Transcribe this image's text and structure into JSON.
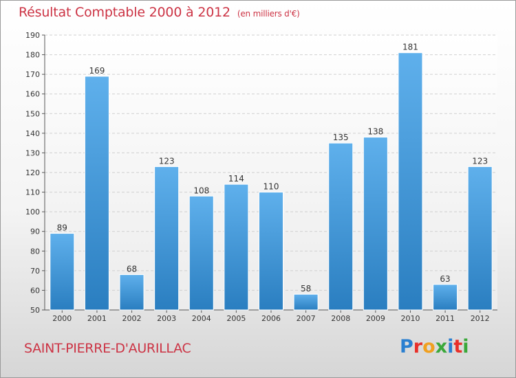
{
  "header": {
    "title": "Résultat Comptable 2000 à 2012",
    "subtitle": "(en milliers d'€)"
  },
  "footer": {
    "place": "SAINT-PIERRE-D'AURILLAC",
    "logo_letters": [
      "P",
      "r",
      "o",
      "x",
      "i",
      "t",
      "i"
    ],
    "logo_colors": [
      "#2a7fd0",
      "#e8302a",
      "#f0a020",
      "#3aa83a",
      "#2a7fd0",
      "#e8302a",
      "#3aa83a"
    ]
  },
  "colors": {
    "bar_top": "#5fb0ec",
    "bar_bottom": "#2a7ec0",
    "title": "#cc3344"
  },
  "chart_data": {
    "type": "bar",
    "title": "Résultat Comptable 2000 à 2012",
    "subtitle": "(en milliers d'€)",
    "categories": [
      "2000",
      "2001",
      "2002",
      "2003",
      "2004",
      "2005",
      "2006",
      "2007",
      "2008",
      "2009",
      "2010",
      "2011",
      "2012"
    ],
    "values": [
      89,
      169,
      68,
      123,
      108,
      114,
      110,
      58,
      135,
      138,
      181,
      63,
      123
    ],
    "ylim": [
      50,
      190
    ],
    "yticks": [
      50,
      60,
      70,
      80,
      90,
      100,
      110,
      120,
      130,
      140,
      150,
      160,
      170,
      180,
      190
    ],
    "grid": true,
    "xlabel": "",
    "ylabel": ""
  }
}
